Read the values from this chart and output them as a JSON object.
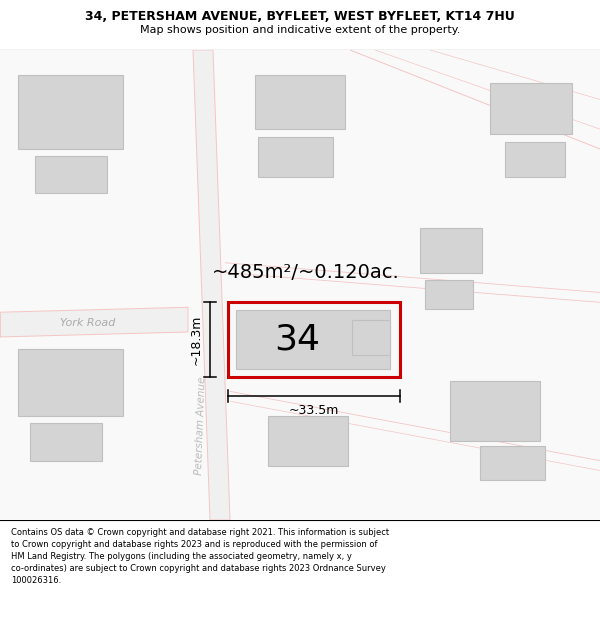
{
  "title": "34, PETERSHAM AVENUE, BYFLEET, WEST BYFLEET, KT14 7HU",
  "subtitle": "Map shows position and indicative extent of the property.",
  "footer": "Contains OS data © Crown copyright and database right 2021. This information is subject to Crown copyright and database rights 2023 and is reproduced with the permission of HM Land Registry. The polygons (including the associated geometry, namely x, y co-ordinates) are subject to Crown copyright and database rights 2023 Ordnance Survey 100026316.",
  "bg_color": "#ffffff",
  "road_color": "#f5c5c5",
  "building_color": "#d4d4d4",
  "building_outline": "#c0c0c0",
  "highlight_color": "#cc0000",
  "area_text": "~485m²/~0.120ac.",
  "number_label": "34",
  "dim_width": "~33.5m",
  "dim_height": "~18.3m",
  "york_road_label": "York Road",
  "avenue_label": "Petersham Avenue",
  "title_fontsize": 9.0,
  "subtitle_fontsize": 8.0,
  "footer_fontsize": 6.0
}
